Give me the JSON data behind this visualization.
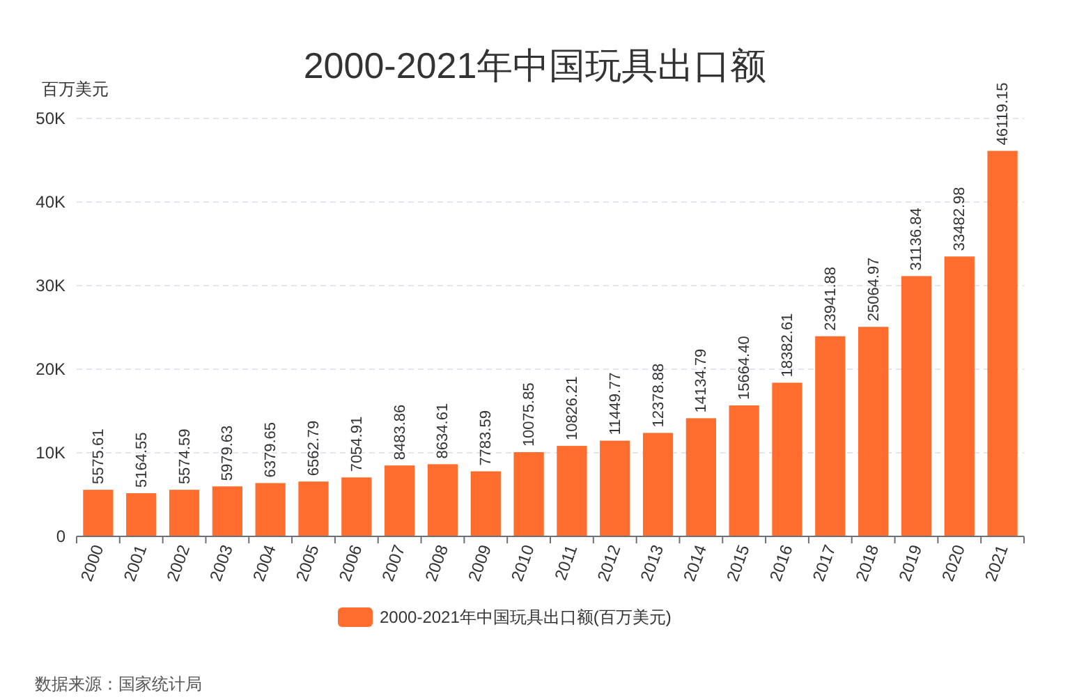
{
  "chart_data": {
    "type": "bar",
    "title": "2000-2021年中国玩具出口额",
    "ylabel": "百万美元",
    "categories": [
      "2000",
      "2001",
      "2002",
      "2003",
      "2004",
      "2005",
      "2006",
      "2007",
      "2008",
      "2009",
      "2010",
      "2011",
      "2012",
      "2013",
      "2014",
      "2015",
      "2016",
      "2017",
      "2018",
      "2019",
      "2020",
      "2021"
    ],
    "series": [
      {
        "name": "2000-2021年中国玩具出口额(百万美元)",
        "color": "#ff6d2e",
        "values": [
          5575.61,
          5164.55,
          5574.59,
          5979.63,
          6379.65,
          6562.79,
          7054.91,
          8483.86,
          8634.61,
          7783.59,
          10075.85,
          10826.21,
          11449.77,
          12378.88,
          14134.79,
          15664.4,
          18382.61,
          23941.88,
          25064.97,
          31136.84,
          33482.98,
          46119.15
        ],
        "value_labels": [
          "5575.61",
          "5164.55",
          "5574.59",
          "5979.63",
          "6379.65",
          "6562.79",
          "7054.91",
          "8483.86",
          "8634.61",
          "7783.59",
          "10075.85",
          "10826.21",
          "11449.77",
          "12378.88",
          "14134.79",
          "15664.40",
          "18382.61",
          "23941.88",
          "25064.97",
          "31136.84",
          "33482.98",
          "46119.15"
        ]
      }
    ],
    "ylim": [
      0,
      50000
    ],
    "yticks": [
      0,
      {
        "value": 10000,
        "label": "10K"
      },
      {
        "value": 20000,
        "label": "20K"
      },
      {
        "value": 30000,
        "label": "30K"
      },
      {
        "value": 40000,
        "label": "40K"
      },
      {
        "value": 50000,
        "label": "50K"
      }
    ],
    "grid": "y",
    "legend": "bottom",
    "annotations": [
      "数据来源：国家统计局"
    ]
  }
}
